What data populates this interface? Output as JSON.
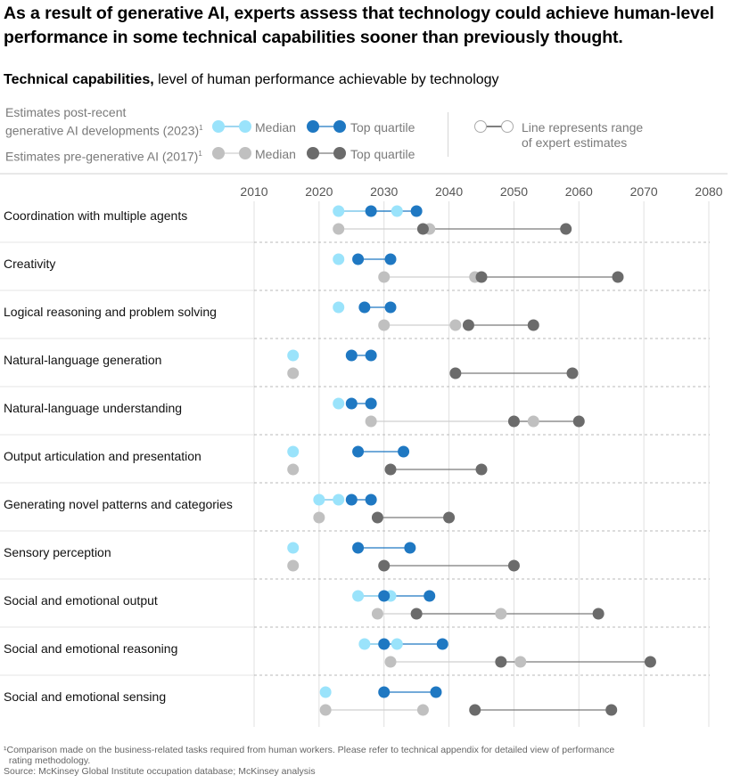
{
  "headline": "As a result of generative AI, experts assess that technology could achieve human-level performance in some technical capabilities sooner than previously thought.",
  "subtitle": {
    "strong": "Technical capabilities,",
    "rest": " level of human performance achievable by technology"
  },
  "legend": {
    "post_label_line1": "Estimates post-recent",
    "post_label_line2": "generative AI developments (2023)",
    "pre_label": "Estimates pre-generative AI (2017)",
    "footnote_mark": "1",
    "median": "Median",
    "top_quartile": "Top quartile",
    "range_line1": "Line represents range",
    "range_line2": "of expert estimates"
  },
  "colors": {
    "post_median": "#9ae3fb",
    "post_top": "#1f78c2",
    "post_line": "#66bde8",
    "pre_median": "#c0c0c0",
    "pre_top": "#6b6b6b",
    "pre_line_median": "#cfcfcf",
    "pre_line_top": "#7a7a7a",
    "grid": "#e0e0e0",
    "separator": "#b8b8b8"
  },
  "chart_data": {
    "type": "dumbbell",
    "xlim": [
      2010,
      2080
    ],
    "x_ticks": [
      2010,
      2020,
      2030,
      2040,
      2050,
      2060,
      2070,
      2080
    ],
    "categories": [
      "Coordination with multiple agents",
      "Creativity",
      "Logical reasoning and problem solving",
      "Natural-language generation",
      "Natural-language understanding",
      "Output articulation and presentation",
      "Generating novel patterns and categories",
      "Sensory perception",
      "Social and emotional output",
      "Social and emotional reasoning",
      "Social and emotional sensing"
    ],
    "series": [
      {
        "name": "Estimates post-recent generative AI developments (2023) — Median",
        "ranges": [
          [
            2023,
            2032
          ],
          [
            2023,
            2023
          ],
          [
            2023,
            2023
          ],
          [
            2016,
            2016
          ],
          [
            2023,
            2023
          ],
          [
            2016,
            2016
          ],
          [
            2020,
            2023
          ],
          [
            2016,
            2016
          ],
          [
            2026,
            2031
          ],
          [
            2027,
            2032
          ],
          [
            2021,
            2021
          ]
        ]
      },
      {
        "name": "Estimates post-recent generative AI developments (2023) — Top quartile",
        "ranges": [
          [
            2028,
            2035
          ],
          [
            2026,
            2031
          ],
          [
            2027,
            2031
          ],
          [
            2025,
            2028
          ],
          [
            2025,
            2028
          ],
          [
            2026,
            2033
          ],
          [
            2025,
            2028
          ],
          [
            2026,
            2034
          ],
          [
            2030,
            2037
          ],
          [
            2030,
            2039
          ],
          [
            2030,
            2038
          ]
        ]
      },
      {
        "name": "Estimates pre-generative AI (2017) — Median",
        "ranges": [
          [
            2023,
            2037
          ],
          [
            2030,
            2044
          ],
          [
            2030,
            2041
          ],
          [
            2016,
            2016
          ],
          [
            2028,
            2053
          ],
          [
            2016,
            2016
          ],
          [
            2020,
            2020
          ],
          [
            2016,
            2016
          ],
          [
            2029,
            2048
          ],
          [
            2031,
            2051
          ],
          [
            2021,
            2036
          ]
        ]
      },
      {
        "name": "Estimates pre-generative AI (2017) — Top quartile",
        "ranges": [
          [
            2036,
            2058
          ],
          [
            2045,
            2066
          ],
          [
            2043,
            2053
          ],
          [
            2041,
            2059
          ],
          [
            2050,
            2060
          ],
          [
            2031,
            2045
          ],
          [
            2029,
            2040
          ],
          [
            2030,
            2050
          ],
          [
            2035,
            2063
          ],
          [
            2048,
            2071
          ],
          [
            2044,
            2065
          ]
        ]
      }
    ]
  },
  "footnote": {
    "line1": "¹Comparison made on the business-related tasks required from human workers. Please refer to technical appendix for detailed view of performance",
    "line2": "  rating methodology.",
    "source": "Source: McKinsey Global Institute occupation database; McKinsey analysis"
  }
}
